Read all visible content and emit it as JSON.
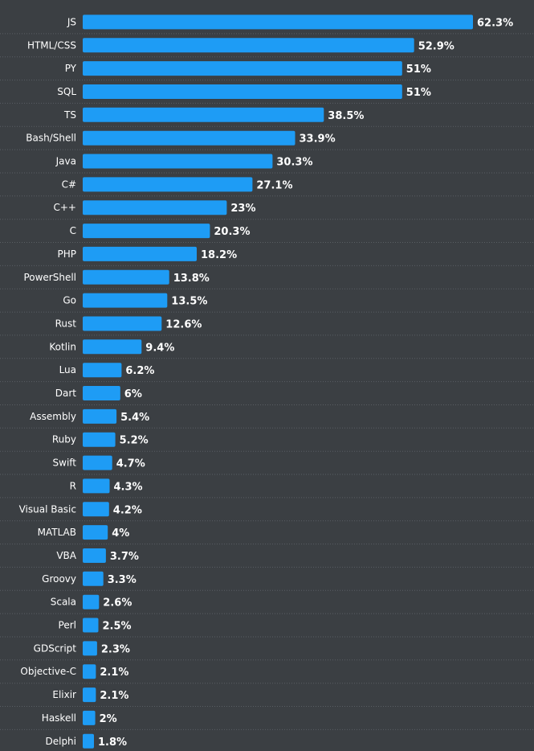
{
  "chart_data": {
    "type": "bar",
    "orientation": "horizontal",
    "value_suffix": "%",
    "bar_color": "#1e9cf5",
    "background_color": "#3b3f43",
    "grid": false,
    "legend": "none",
    "xlim": [
      0,
      62.3
    ],
    "categories": [
      "JS",
      "HTML/CSS",
      "PY",
      "SQL",
      "TS",
      "Bash/Shell",
      "Java",
      "C#",
      "C++",
      "C",
      "PHP",
      "PowerShell",
      "Go",
      "Rust",
      "Kotlin",
      "Lua",
      "Dart",
      "Assembly",
      "Ruby",
      "Swift",
      "R",
      "Visual Basic",
      "MATLAB",
      "VBA",
      "Groovy",
      "Scala",
      "Perl",
      "GDScript",
      "Objective-C",
      "Elixir",
      "Haskell",
      "Delphi"
    ],
    "values": [
      62.3,
      52.9,
      51,
      51,
      38.5,
      33.9,
      30.3,
      27.1,
      23,
      20.3,
      18.2,
      13.8,
      13.5,
      12.6,
      9.4,
      6.2,
      6,
      5.4,
      5.2,
      4.7,
      4.3,
      4.2,
      4,
      3.7,
      3.3,
      2.6,
      2.5,
      2.3,
      2.1,
      2.1,
      2,
      1.8
    ]
  }
}
